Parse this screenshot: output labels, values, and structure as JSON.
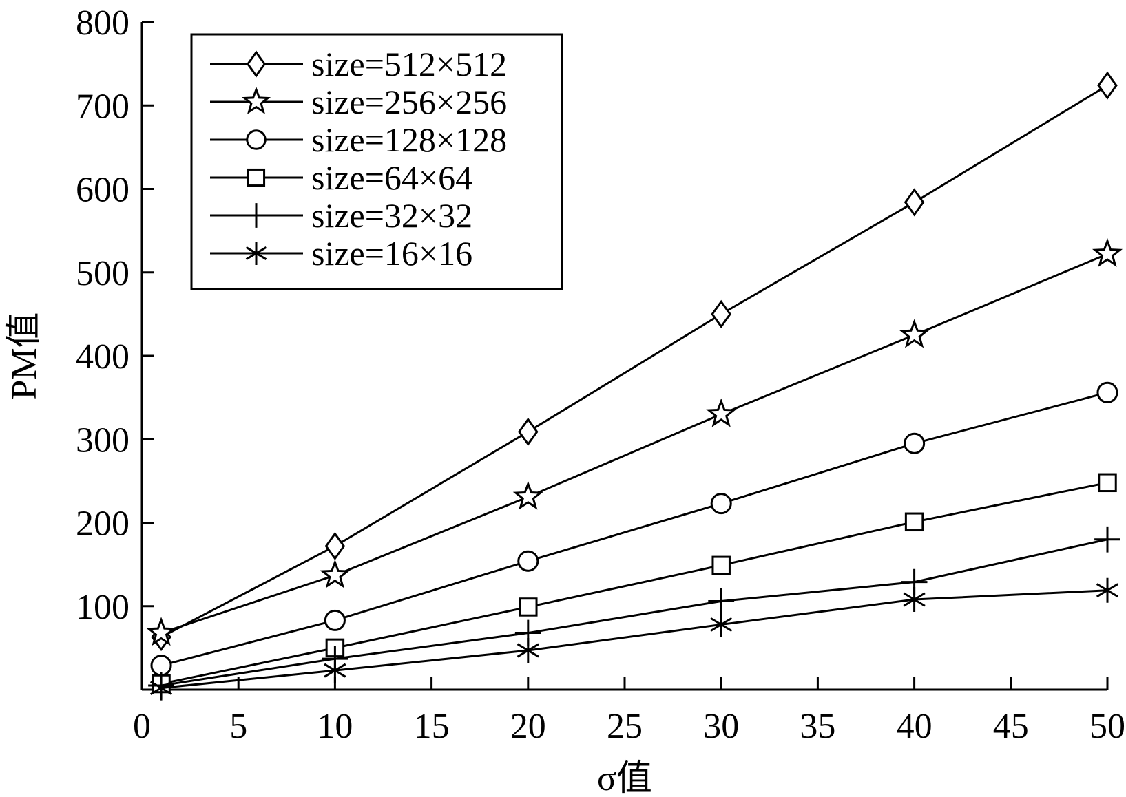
{
  "chart_data": {
    "type": "line",
    "xlabel": "σ值",
    "ylabel": "PM值",
    "xlim": [
      0,
      50
    ],
    "ylim": [
      0,
      800
    ],
    "xticks": [
      0,
      5,
      10,
      15,
      20,
      25,
      30,
      35,
      40,
      45,
      50
    ],
    "yticks": [
      100,
      200,
      300,
      400,
      500,
      600,
      700,
      800
    ],
    "grid": false,
    "legend_position": "top-left",
    "x": [
      1,
      10,
      20,
      30,
      40,
      50
    ],
    "series": [
      {
        "name": "size=512×512",
        "marker": "diamond",
        "values": [
          63,
          172,
          309,
          450,
          584,
          724
        ]
      },
      {
        "name": "size=256×256",
        "marker": "star",
        "values": [
          68,
          137,
          231,
          330,
          425,
          522
        ]
      },
      {
        "name": "size=128×128",
        "marker": "circle",
        "values": [
          29,
          83,
          154,
          223,
          295,
          356
        ]
      },
      {
        "name": "size=64×64",
        "marker": "square",
        "values": [
          7,
          50,
          99,
          149,
          201,
          248
        ]
      },
      {
        "name": "size=32×32",
        "marker": "plus",
        "values": [
          5,
          37,
          68,
          106,
          129,
          180
        ]
      },
      {
        "name": "size=16×16",
        "marker": "asterisk",
        "values": [
          2,
          23,
          47,
          78,
          108,
          119
        ]
      }
    ],
    "colors": {
      "line": "#000000",
      "marker_fill": "#ffffff",
      "background": "#ffffff"
    }
  }
}
